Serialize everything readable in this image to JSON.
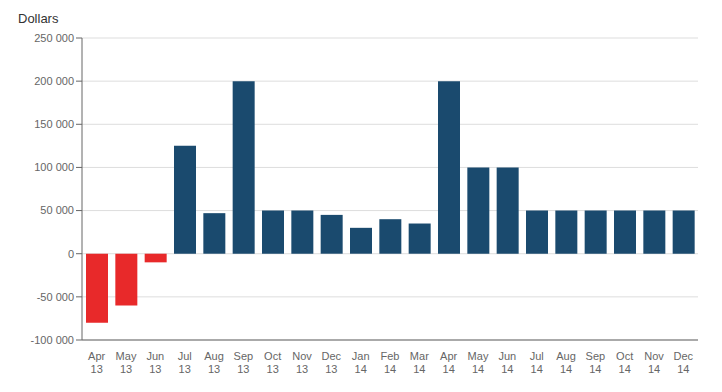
{
  "chart_data": {
    "type": "bar",
    "ylabel": "Dollars",
    "categories": [
      "Apr\n13",
      "May\n13",
      "Jun\n13",
      "Jul\n13",
      "Aug\n13",
      "Sep\n13",
      "Oct\n13",
      "Nov\n13",
      "Dec\n13",
      "Jan\n14",
      "Feb\n14",
      "Mar\n14",
      "Apr\n14",
      "May\n14",
      "Jun\n14",
      "Jul\n14",
      "Aug\n14",
      "Sep\n14",
      "Oct\n14",
      "Nov\n14",
      "Dec\n14"
    ],
    "values": [
      -80000,
      -60000,
      -10000,
      125000,
      47000,
      200000,
      50000,
      50000,
      45000,
      30000,
      40000,
      35000,
      200000,
      100000,
      100000,
      50000,
      50000,
      50000,
      50000,
      50000,
      50000
    ],
    "colors": [
      "#e8292a",
      "#e8292a",
      "#e8292a",
      "#1a4a6e",
      "#1a4a6e",
      "#1a4a6e",
      "#1a4a6e",
      "#1a4a6e",
      "#1a4a6e",
      "#1a4a6e",
      "#1a4a6e",
      "#1a4a6e",
      "#1a4a6e",
      "#1a4a6e",
      "#1a4a6e",
      "#1a4a6e",
      "#1a4a6e",
      "#1a4a6e",
      "#1a4a6e",
      "#1a4a6e",
      "#1a4a6e"
    ],
    "ylim": [
      -100000,
      250000
    ],
    "yticks": [
      {
        "value": -100000,
        "label": "-100 000"
      },
      {
        "value": -50000,
        "label": "-50 000"
      },
      0,
      {
        "value": 50000,
        "label": "50 000"
      },
      {
        "value": 100000,
        "label": "100 000"
      },
      {
        "value": 150000,
        "label": "150 000"
      },
      {
        "value": 200000,
        "label": "200 000"
      },
      {
        "value": 250000,
        "label": "250 000"
      }
    ],
    "grid": true
  }
}
